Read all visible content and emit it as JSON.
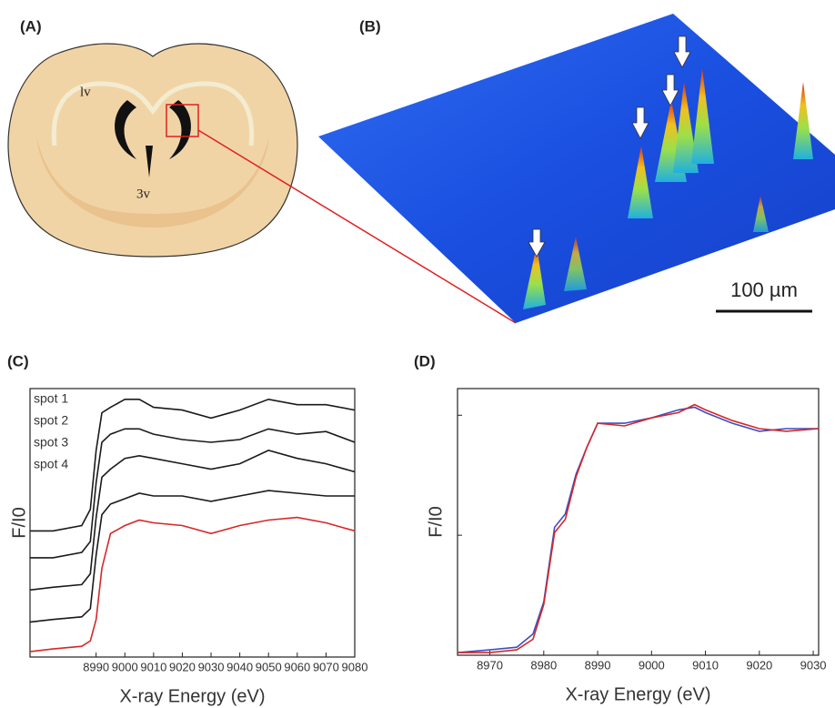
{
  "panels": [
    {
      "label": "(A)",
      "annotations": [
        "lv",
        "3v"
      ]
    },
    {
      "label": "(B)",
      "scale_bar": "100 µm"
    }
  ],
  "chart_data": [
    {
      "type": "line",
      "panel_label": "(C)",
      "xlabel": "X-ray Energy (eV)",
      "ylabel": "F/I0",
      "x": [
        8967,
        8975,
        8985,
        8988,
        8990,
        8992,
        8995,
        9000,
        9005,
        9010,
        9020,
        9030,
        9040,
        9050,
        9060,
        9070,
        9080
      ],
      "series": [
        {
          "name": "spot 1",
          "color": "#1a1a1a",
          "values": [
            0.47,
            0.47,
            0.49,
            0.55,
            0.77,
            0.91,
            0.93,
            0.96,
            0.96,
            0.93,
            0.92,
            0.89,
            0.92,
            0.96,
            0.94,
            0.94,
            0.92
          ]
        },
        {
          "name": "spot 2",
          "color": "#1a1a1a",
          "values": [
            0.37,
            0.37,
            0.39,
            0.43,
            0.65,
            0.8,
            0.83,
            0.85,
            0.85,
            0.83,
            0.81,
            0.8,
            0.81,
            0.85,
            0.83,
            0.84,
            0.8
          ]
        },
        {
          "name": "spot 3",
          "color": "#1a1a1a",
          "values": [
            0.25,
            0.26,
            0.27,
            0.31,
            0.52,
            0.67,
            0.7,
            0.74,
            0.75,
            0.74,
            0.72,
            0.7,
            0.72,
            0.77,
            0.74,
            0.72,
            0.69
          ]
        },
        {
          "name": "spot 4",
          "color": "#1a1a1a",
          "values": [
            0.13,
            0.14,
            0.15,
            0.18,
            0.38,
            0.53,
            0.57,
            0.59,
            0.61,
            0.6,
            0.6,
            0.58,
            0.6,
            0.62,
            0.61,
            0.6,
            0.6
          ]
        },
        {
          "color": "#d62728",
          "values": [
            0.02,
            0.03,
            0.04,
            0.06,
            0.14,
            0.33,
            0.46,
            0.49,
            0.51,
            0.5,
            0.49,
            0.46,
            0.49,
            0.51,
            0.52,
            0.5,
            0.47
          ]
        }
      ],
      "xlim": [
        8967,
        9080
      ],
      "ylim": [
        0,
        1
      ],
      "xticks": [
        8990,
        9000,
        9010,
        9020,
        9030,
        9040,
        9050,
        9060,
        9070,
        9080
      ]
    },
    {
      "type": "line",
      "panel_label": "(D)",
      "xlabel": "X-ray Energy (eV)",
      "ylabel": "F/I0",
      "x": [
        8964,
        8970,
        8975,
        8978,
        8980,
        8982,
        8984,
        8986,
        8988,
        8990,
        8995,
        9000,
        9005,
        9008,
        9010,
        9015,
        9020,
        9025,
        9031
      ],
      "series": [
        {
          "color": "#3b4fc4",
          "values": [
            0.01,
            0.02,
            0.03,
            0.08,
            0.2,
            0.48,
            0.53,
            0.68,
            0.78,
            0.87,
            0.87,
            0.89,
            0.92,
            0.93,
            0.91,
            0.87,
            0.84,
            0.85,
            0.85
          ]
        },
        {
          "color": "#d62728",
          "values": [
            0.01,
            0.01,
            0.02,
            0.06,
            0.19,
            0.46,
            0.51,
            0.67,
            0.78,
            0.87,
            0.86,
            0.89,
            0.91,
            0.94,
            0.92,
            0.88,
            0.85,
            0.84,
            0.85
          ]
        }
      ],
      "xlim": [
        8964,
        9031
      ],
      "ylim": [
        0,
        1
      ],
      "xticks": [
        8970,
        8980,
        8990,
        9000,
        9010,
        9020,
        9030
      ],
      "yticks": [
        0.45,
        0.9
      ],
      "ytick_labels": false
    }
  ]
}
